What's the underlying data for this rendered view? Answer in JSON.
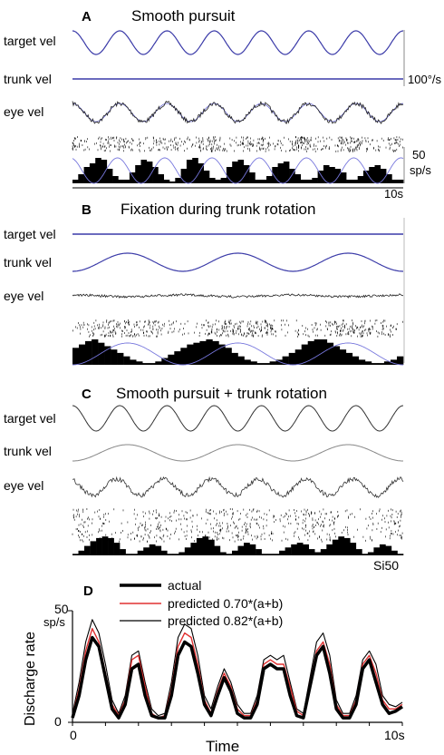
{
  "chart_data": [
    {
      "panel": "A",
      "title": "Smooth pursuit",
      "type": "line",
      "traces": [
        "target vel",
        "trunk vel",
        "eye vel"
      ],
      "cycles": 7,
      "scale_velocity": "100°/s",
      "scale_rate": [
        "50",
        "sp/s"
      ],
      "scale_time": "10s",
      "histogram": [
        2,
        5,
        9,
        11,
        14,
        13,
        8,
        4,
        2,
        2,
        6,
        10,
        13,
        12,
        9,
        5,
        2,
        1,
        3,
        8,
        13,
        14,
        11,
        7,
        3,
        2,
        3,
        9,
        12,
        13,
        10,
        6,
        2,
        2,
        4,
        9,
        11,
        12,
        8,
        5,
        2,
        2,
        3,
        7,
        10,
        9,
        8,
        6,
        2,
        2,
        4,
        7,
        9,
        10,
        8,
        5,
        2,
        2
      ]
    },
    {
      "panel": "B",
      "title": "Fixation during trunk rotation",
      "type": "line",
      "traces": [
        "target vel",
        "trunk vel",
        "eye vel"
      ],
      "cycles": 3,
      "histogram": [
        10,
        12,
        14,
        15,
        13,
        11,
        9,
        7,
        5,
        3,
        2,
        1,
        1,
        2,
        4,
        6,
        8,
        10,
        12,
        13,
        14,
        15,
        14,
        12,
        10,
        7,
        5,
        3,
        2,
        1,
        1,
        2,
        3,
        5,
        7,
        9,
        12,
        14,
        15,
        15,
        13,
        11,
        9,
        7,
        5,
        3,
        2,
        1,
        1,
        2,
        3,
        5
      ]
    },
    {
      "panel": "C",
      "title": "Smooth pursuit + trunk rotation",
      "type": "line",
      "traces": [
        "target vel",
        "trunk vel",
        "eye vel"
      ],
      "cycles_target": 7,
      "cycles_trunk": 3,
      "label": "Si50",
      "histogram": [
        1,
        3,
        6,
        9,
        11,
        12,
        11,
        8,
        4,
        1,
        1,
        3,
        5,
        7,
        6,
        3,
        1,
        1,
        2,
        5,
        8,
        11,
        12,
        10,
        6,
        2,
        1,
        3,
        6,
        8,
        7,
        4,
        1,
        1,
        1,
        3,
        5,
        7,
        8,
        7,
        4,
        2,
        4,
        7,
        10,
        12,
        11,
        8,
        4,
        1,
        2,
        5,
        7,
        6,
        3,
        1
      ]
    },
    {
      "panel": "D",
      "type": "line",
      "xlabel": "Time",
      "ylabel": "Discharge rate",
      "y_unit": "sp/s",
      "ylim": [
        0,
        50
      ],
      "y_ticks": [
        "0",
        "50"
      ],
      "x_ticks": [
        "0",
        "10s"
      ],
      "legend": [
        "actual",
        "predicted 0.70*(a+b)",
        "predicted 0.82*(a+b)"
      ],
      "legend_position": "top",
      "x": [
        0.0,
        0.2,
        0.4,
        0.6,
        0.8,
        1.0,
        1.2,
        1.4,
        1.6,
        1.8,
        2.0,
        2.2,
        2.4,
        2.6,
        2.8,
        3.0,
        3.2,
        3.4,
        3.6,
        3.8,
        4.0,
        4.2,
        4.4,
        4.6,
        4.8,
        5.0,
        5.2,
        5.4,
        5.6,
        5.8,
        6.0,
        6.2,
        6.4,
        6.6,
        6.8,
        7.0,
        7.2,
        7.4,
        7.6,
        7.8,
        8.0,
        8.2,
        8.4,
        8.6,
        8.8,
        9.0,
        9.2,
        9.4,
        9.6,
        9.8,
        10.0
      ],
      "series": [
        {
          "name": "actual",
          "color": "#000000",
          "values": [
            2,
            12,
            28,
            38,
            34,
            20,
            6,
            2,
            8,
            24,
            26,
            12,
            3,
            2,
            2,
            12,
            30,
            36,
            34,
            22,
            8,
            3,
            12,
            20,
            14,
            4,
            2,
            2,
            8,
            24,
            26,
            24,
            24,
            12,
            3,
            2,
            16,
            30,
            34,
            22,
            6,
            2,
            2,
            8,
            24,
            28,
            18,
            8,
            4,
            5,
            7
          ]
        },
        {
          "name": "predicted 0.70*(a+b)",
          "color": "#e03030",
          "values": [
            3,
            15,
            32,
            42,
            36,
            22,
            8,
            3,
            10,
            28,
            30,
            16,
            4,
            2,
            3,
            15,
            34,
            40,
            38,
            26,
            10,
            4,
            14,
            22,
            16,
            6,
            3,
            3,
            10,
            26,
            28,
            26,
            26,
            16,
            5,
            3,
            18,
            32,
            36,
            26,
            8,
            3,
            3,
            10,
            26,
            30,
            22,
            10,
            6,
            6,
            8
          ]
        },
        {
          "name": "predicted 0.82*(a+b)",
          "color": "#000000",
          "values": [
            4,
            18,
            36,
            46,
            40,
            26,
            10,
            4,
            12,
            30,
            32,
            18,
            6,
            3,
            4,
            18,
            38,
            44,
            42,
            30,
            12,
            6,
            16,
            24,
            18,
            8,
            4,
            4,
            12,
            28,
            30,
            28,
            30,
            18,
            6,
            4,
            20,
            36,
            40,
            30,
            10,
            4,
            4,
            12,
            28,
            32,
            26,
            12,
            8,
            7,
            9
          ]
        }
      ]
    }
  ]
}
